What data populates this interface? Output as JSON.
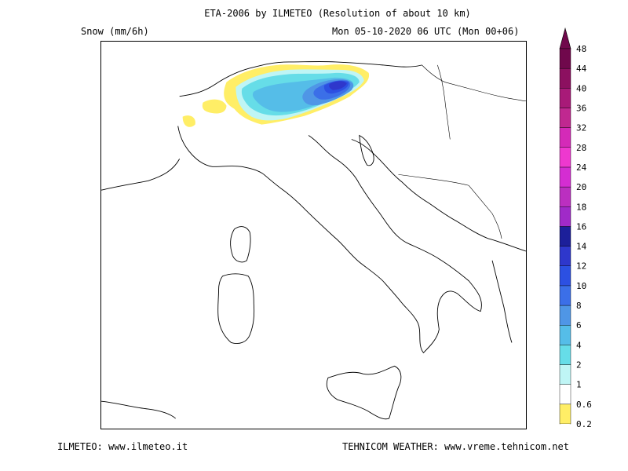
{
  "header": {
    "title": "ETA-2006 by ILMETEO (Resolution of about 10 km)",
    "variable": "Snow (mm/6h)",
    "valid_time": "Mon 05-10-2020 06 UTC (Mon 00+06)"
  },
  "footer": {
    "left": "ILMETEO: www.ilmeteo.it",
    "right": "TEHNICOM WEATHER: www.vreme.tehnicom.net"
  },
  "legend": {
    "levels": [
      "0.2",
      "0.6",
      "1",
      "2",
      "4",
      "6",
      "8",
      "10",
      "12",
      "14",
      "16",
      "18",
      "20",
      "24",
      "28",
      "32",
      "36",
      "40",
      "44",
      "48"
    ],
    "colors": [
      "#ffee66",
      "#ffffff",
      "#bff5f5",
      "#66dde8",
      "#55bde8",
      "#4f96e6",
      "#3b6fe8",
      "#2c50e2",
      "#2e37cc",
      "#1c1f9a",
      "#a02ac8",
      "#bb2fc0",
      "#d42dd2",
      "#ee38cf",
      "#d42ab8",
      "#c02890",
      "#a81a78",
      "#8c1060",
      "#70084c",
      "#70084c"
    ]
  },
  "map_data": {
    "region": "Italy and surroundings",
    "snow_area": "Western and central Alps",
    "max_snow_area": "Central-eastern Alps (South Tyrol/Trentino)"
  }
}
